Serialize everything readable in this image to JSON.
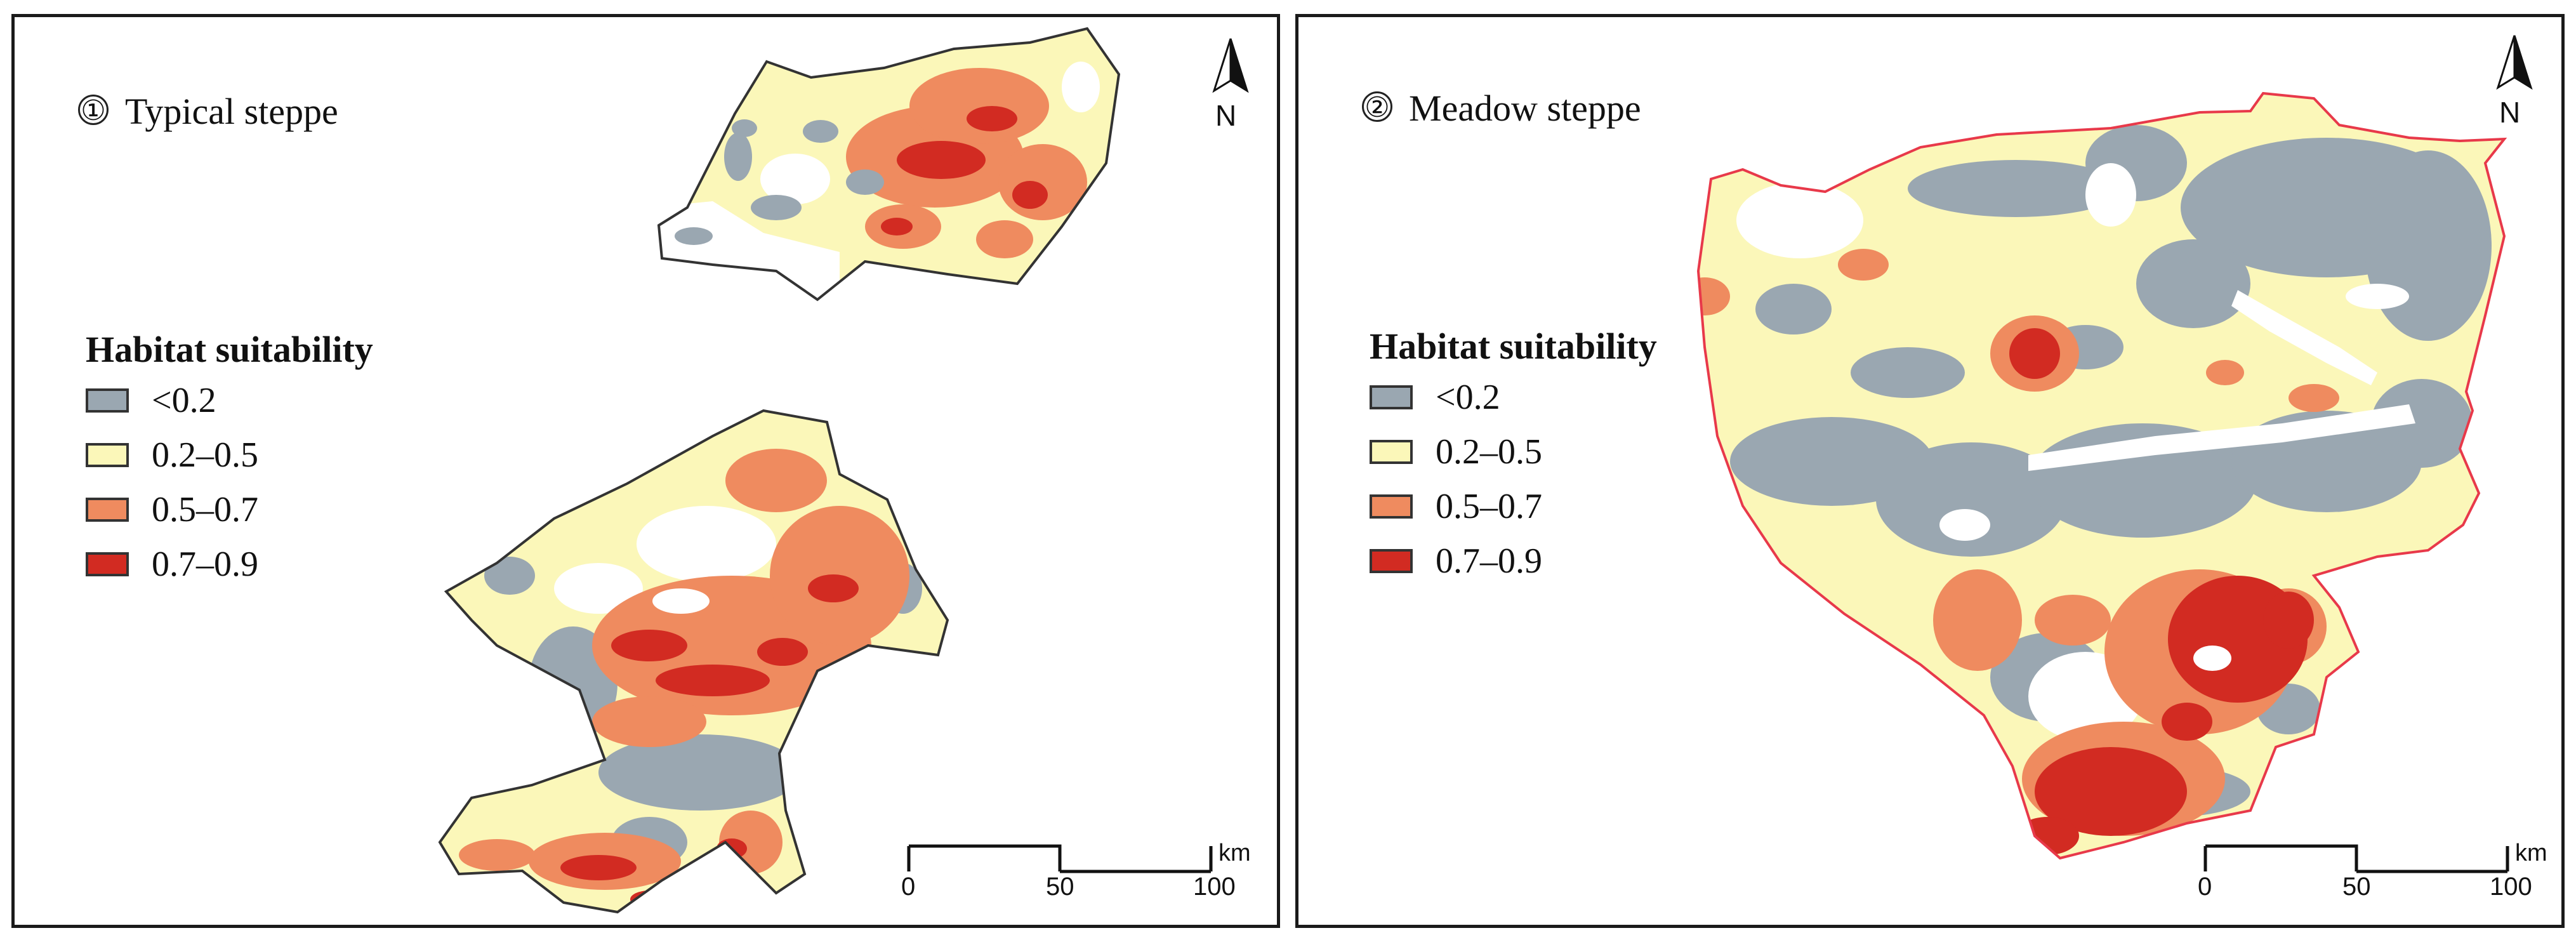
{
  "colors": {
    "lt_0_2": "#9aa7b1",
    "from_0_2_to_0_5": "#fbf7b9",
    "from_0_5_to_0_7": "#ef8b5f",
    "from_0_7_to_0_9": "#d22b22",
    "panel1_boundary": "#333333",
    "panel2_boundary": "#e8394a"
  },
  "panels": [
    {
      "number": "①",
      "title": "Typical steppe",
      "legend": {
        "title": "Habitat suitability",
        "items": [
          {
            "label": "<0.2",
            "color": "#9aa7b1"
          },
          {
            "label": "0.2–0.5",
            "color": "#fbf7b9"
          },
          {
            "label": "0.5–0.7",
            "color": "#ef8b5f"
          },
          {
            "label": "0.7–0.9",
            "color": "#d22b22"
          }
        ]
      },
      "north_label": "N",
      "scale": {
        "ticks": [
          "0",
          "50",
          "100"
        ],
        "unit": "km"
      }
    },
    {
      "number": "②",
      "title": "Meadow steppe",
      "legend": {
        "title": "Habitat suitability",
        "items": [
          {
            "label": "<0.2",
            "color": "#9aa7b1"
          },
          {
            "label": "0.2–0.5",
            "color": "#fbf7b9"
          },
          {
            "label": "0.5–0.7",
            "color": "#ef8b5f"
          },
          {
            "label": "0.7–0.9",
            "color": "#d22b22"
          }
        ]
      },
      "north_label": "N",
      "scale": {
        "ticks": [
          "0",
          "50",
          "100"
        ],
        "unit": "km"
      }
    }
  ]
}
